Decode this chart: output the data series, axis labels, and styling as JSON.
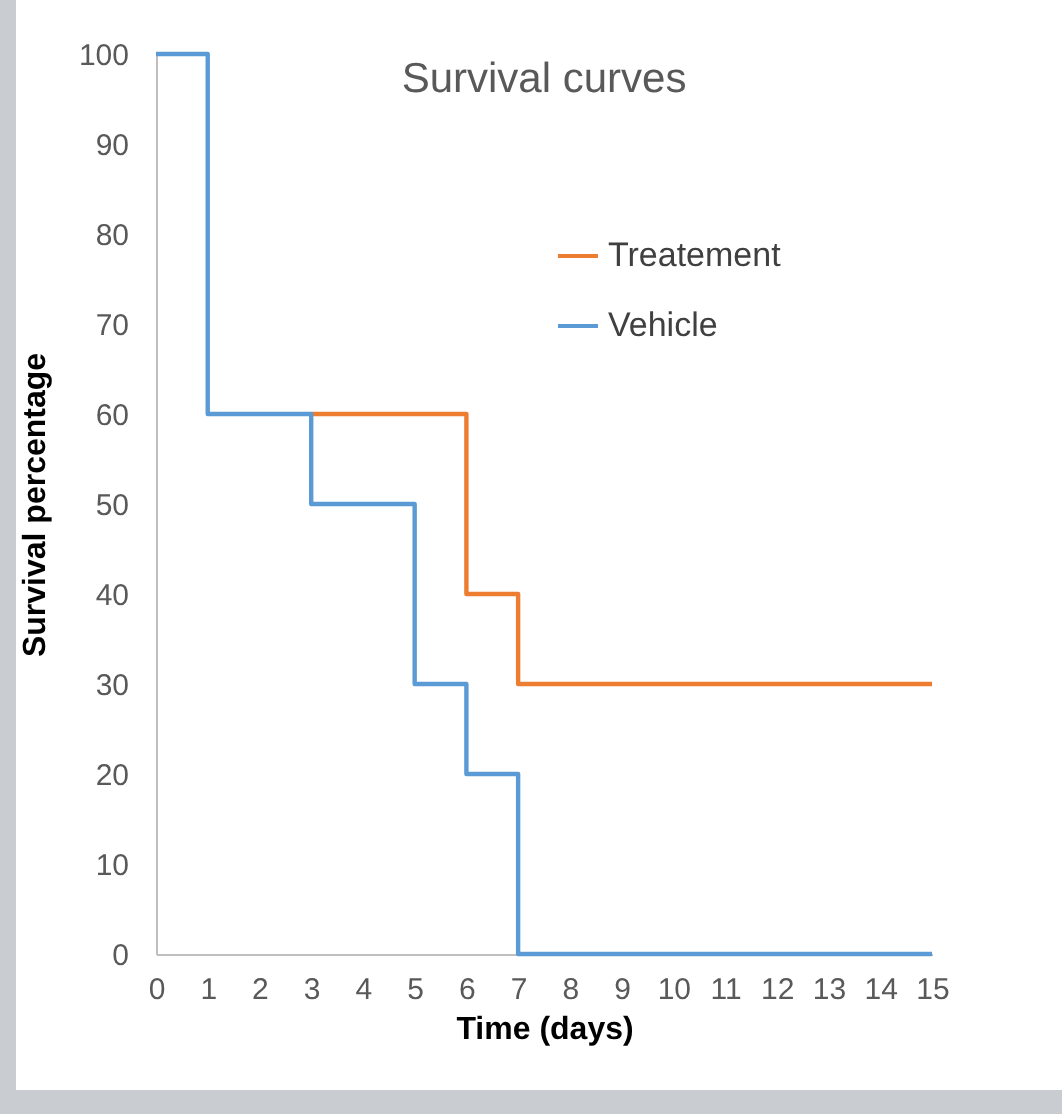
{
  "chart_data": {
    "type": "step",
    "title": "Survival curves",
    "xlabel": "Time (days)",
    "ylabel": "Survival percentage",
    "x": [
      0,
      1,
      3,
      5,
      6,
      7,
      15
    ],
    "series": [
      {
        "name": "Treatement",
        "color": "#ed7d31",
        "values": [
          null,
          null,
          60,
          60,
          40,
          30,
          30
        ]
      },
      {
        "name": "Vehicle",
        "color": "#5b9bd5",
        "values": [
          100,
          60,
          50,
          30,
          20,
          0,
          0
        ]
      }
    ],
    "xlim": [
      0,
      15
    ],
    "xticks": [
      0,
      1,
      2,
      3,
      4,
      5,
      6,
      7,
      8,
      9,
      10,
      11,
      12,
      13,
      14,
      15
    ],
    "ylim": [
      0,
      100
    ],
    "yticks": [
      0,
      10,
      20,
      30,
      40,
      50,
      60,
      70,
      80,
      90,
      100
    ],
    "grid": false,
    "legend": "top right",
    "line_style": "solid",
    "marker": "none"
  }
}
